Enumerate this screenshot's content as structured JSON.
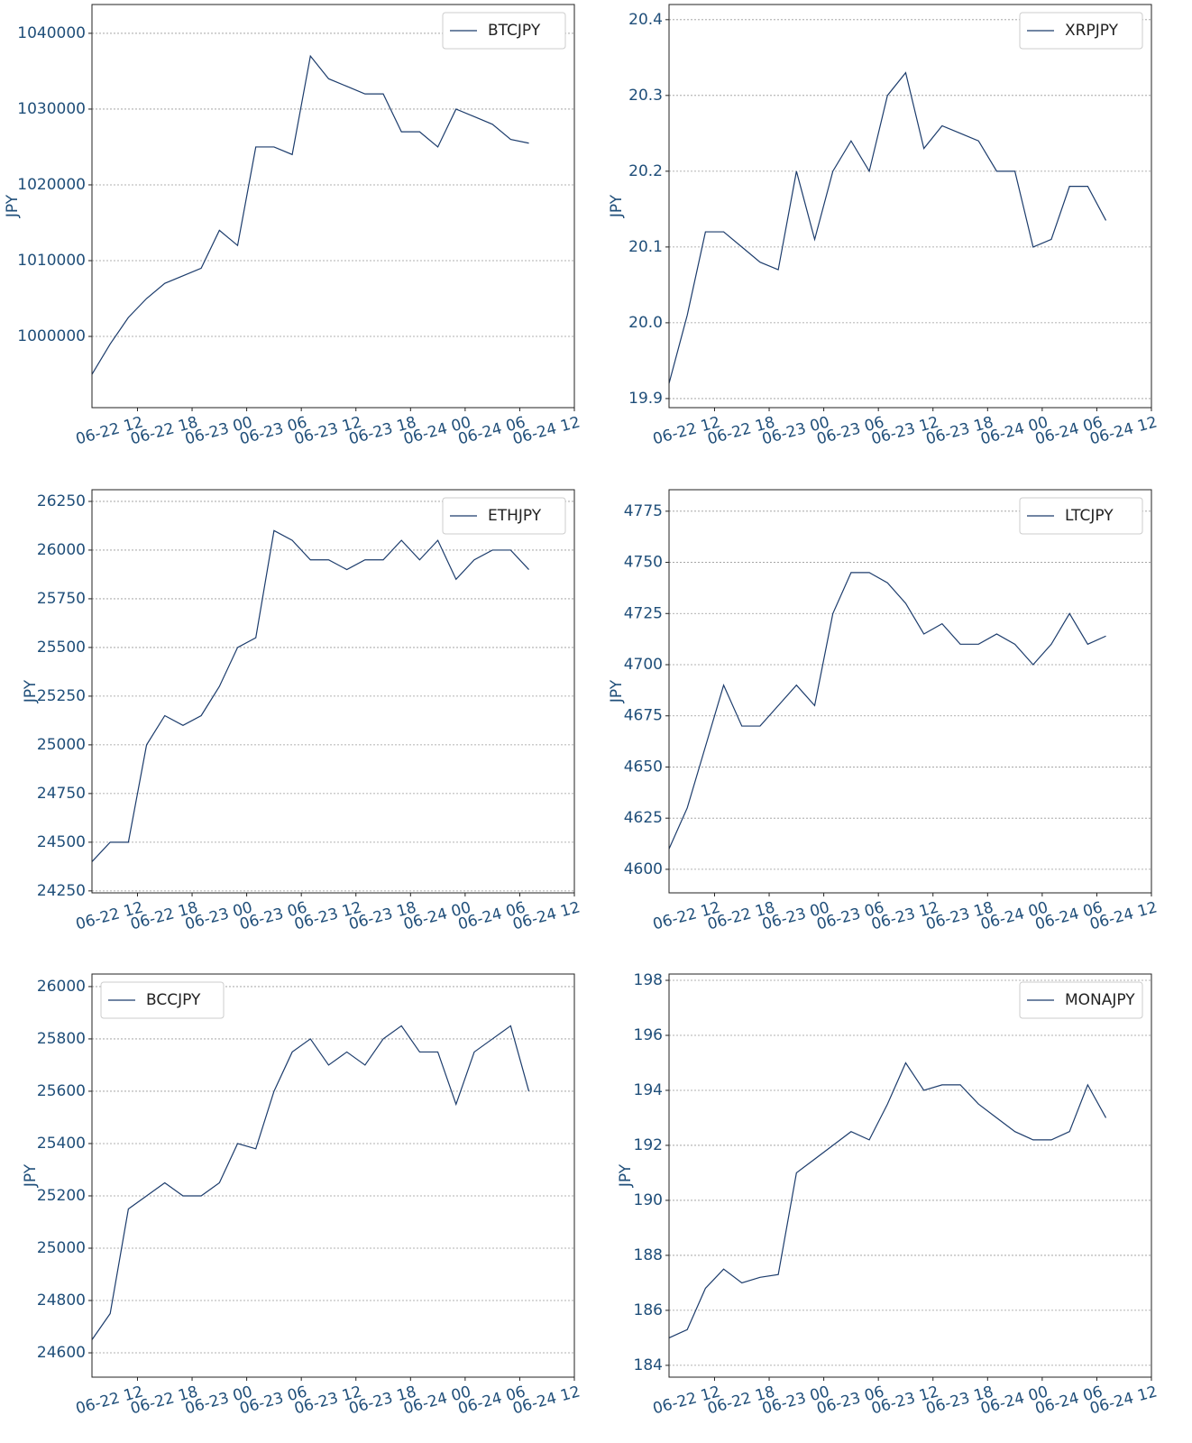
{
  "chart_data": [
    {
      "type": "line",
      "y_label": "JPY",
      "grid": true,
      "legend": "upper right",
      "x": [
        "06-22 07",
        "06-22 09",
        "06-22 11",
        "06-22 13",
        "06-22 15",
        "06-22 17",
        "06-22 19",
        "06-22 21",
        "06-22 23",
        "06-23 01",
        "06-23 03",
        "06-23 05",
        "06-23 07",
        "06-23 09",
        "06-23 11",
        "06-23 13",
        "06-23 15",
        "06-23 17",
        "06-23 19",
        "06-23 21",
        "06-23 23",
        "06-24 01",
        "06-24 03",
        "06-24 05",
        "06-24 07"
      ],
      "xlim": [
        "06-22 07",
        "06-24 12"
      ],
      "xticks": [
        "06-22 12",
        "06-22 18",
        "06-23 00",
        "06-23 06",
        "06-23 12",
        "06-23 18",
        "06-24 00",
        "06-24 06",
        "06-24 12"
      ],
      "ylim": [
        990600,
        1043800
      ],
      "yticks": [
        1000000,
        1010000,
        1020000,
        1030000,
        1040000
      ],
      "series": [
        {
          "name": "BTCJPY",
          "color": "#1c3c6c",
          "values": [
            995000,
            999000,
            1002500,
            1005000,
            1007000,
            1008000,
            1009000,
            1014000,
            1012000,
            1025000,
            1025000,
            1024000,
            1037000,
            1034000,
            1033000,
            1032000,
            1032000,
            1027000,
            1027000,
            1025000,
            1030000,
            1029000,
            1028000,
            1026000,
            1025500
          ]
        }
      ]
    },
    {
      "type": "line",
      "y_label": "JPY",
      "grid": true,
      "legend": "upper right",
      "x": [
        "06-22 07",
        "06-22 09",
        "06-22 11",
        "06-22 13",
        "06-22 15",
        "06-22 17",
        "06-22 19",
        "06-22 21",
        "06-22 23",
        "06-23 01",
        "06-23 03",
        "06-23 05",
        "06-23 07",
        "06-23 09",
        "06-23 11",
        "06-23 13",
        "06-23 15",
        "06-23 17",
        "06-23 19",
        "06-23 21",
        "06-23 23",
        "06-24 01",
        "06-24 03",
        "06-24 05",
        "06-24 07"
      ],
      "xlim": [
        "06-22 07",
        "06-24 12"
      ],
      "xticks": [
        "06-22 12",
        "06-22 18",
        "06-23 00",
        "06-23 06",
        "06-23 12",
        "06-23 18",
        "06-24 00",
        "06-24 06",
        "06-24 12"
      ],
      "ylim": [
        19.888,
        20.42
      ],
      "yticks": [
        19.9,
        {
          "value": 20,
          "label": "20.0"
        },
        20.1,
        20.2,
        20.3,
        20.4
      ],
      "series": [
        {
          "name": "XRPJPY",
          "color": "#1c3c6c",
          "values": [
            19.92,
            20.01,
            20.12,
            20.12,
            20.1,
            20.08,
            20.07,
            20.2,
            20.11,
            20.2,
            20.24,
            20.2,
            20.3,
            20.33,
            20.23,
            20.26,
            20.25,
            20.24,
            20.2,
            20.2,
            20.1,
            20.11,
            20.18,
            20.18,
            20.135
          ]
        }
      ]
    },
    {
      "type": "line",
      "y_label": "JPY",
      "grid": true,
      "legend": "upper right",
      "x": [
        "06-22 07",
        "06-22 09",
        "06-22 11",
        "06-22 13",
        "06-22 15",
        "06-22 17",
        "06-22 19",
        "06-22 21",
        "06-22 23",
        "06-23 01",
        "06-23 03",
        "06-23 05",
        "06-23 07",
        "06-23 09",
        "06-23 11",
        "06-23 13",
        "06-23 15",
        "06-23 17",
        "06-23 19",
        "06-23 21",
        "06-23 23",
        "06-24 01",
        "06-24 03",
        "06-24 05",
        "06-24 07"
      ],
      "xlim": [
        "06-22 07",
        "06-24 12"
      ],
      "xticks": [
        "06-22 12",
        "06-22 18",
        "06-23 00",
        "06-23 06",
        "06-23 12",
        "06-23 18",
        "06-24 00",
        "06-24 06",
        "06-24 12"
      ],
      "ylim": [
        24240,
        26310
      ],
      "yticks": [
        24250,
        24500,
        24750,
        25000,
        25250,
        25500,
        25750,
        26000,
        26250
      ],
      "series": [
        {
          "name": "ETHJPY",
          "color": "#1c3c6c",
          "values": [
            24400,
            24500,
            24500,
            25000,
            25150,
            25100,
            25150,
            25300,
            25500,
            25550,
            26100,
            26050,
            25950,
            25950,
            25900,
            25950,
            25950,
            26050,
            25950,
            26050,
            25850,
            25950,
            26000,
            26000,
            25900
          ]
        }
      ]
    },
    {
      "type": "line",
      "y_label": "JPY",
      "grid": true,
      "legend": "upper right",
      "x": [
        "06-22 07",
        "06-22 09",
        "06-22 11",
        "06-22 13",
        "06-22 15",
        "06-22 17",
        "06-22 19",
        "06-22 21",
        "06-22 23",
        "06-23 01",
        "06-23 03",
        "06-23 05",
        "06-23 07",
        "06-23 09",
        "06-23 11",
        "06-23 13",
        "06-23 15",
        "06-23 17",
        "06-23 19",
        "06-23 21",
        "06-23 23",
        "06-24 01",
        "06-24 03",
        "06-24 05",
        "06-24 07"
      ],
      "xlim": [
        "06-22 07",
        "06-24 12"
      ],
      "xticks": [
        "06-22 12",
        "06-22 18",
        "06-23 00",
        "06-23 06",
        "06-23 12",
        "06-23 18",
        "06-24 00",
        "06-24 06",
        "06-24 12"
      ],
      "ylim": [
        4588.5,
        4785.5
      ],
      "yticks": [
        4600,
        4625,
        4650,
        4675,
        4700,
        4725,
        4750,
        4775
      ],
      "series": [
        {
          "name": "LTCJPY",
          "color": "#1c3c6c",
          "values": [
            4610,
            4630,
            4660,
            4690,
            4670,
            4670,
            4680,
            4690,
            4680,
            4725,
            4745,
            4745,
            4740,
            4730,
            4715,
            4720,
            4710,
            4710,
            4715,
            4710,
            4700,
            4710,
            4725,
            4710,
            4714
          ]
        }
      ]
    },
    {
      "type": "line",
      "y_label": "JPY",
      "grid": true,
      "legend": "upper left",
      "x": [
        "06-22 07",
        "06-22 09",
        "06-22 11",
        "06-22 13",
        "06-22 15",
        "06-22 17",
        "06-22 19",
        "06-22 21",
        "06-22 23",
        "06-23 01",
        "06-23 03",
        "06-23 05",
        "06-23 07",
        "06-23 09",
        "06-23 11",
        "06-23 13",
        "06-23 15",
        "06-23 17",
        "06-23 19",
        "06-23 21",
        "06-23 23",
        "06-24 01",
        "06-24 03",
        "06-24 05",
        "06-24 07"
      ],
      "xlim": [
        "06-22 07",
        "06-24 12"
      ],
      "xticks": [
        "06-22 12",
        "06-22 18",
        "06-23 00",
        "06-23 06",
        "06-23 12",
        "06-23 18",
        "06-24 00",
        "06-24 06",
        "06-24 12"
      ],
      "ylim": [
        24507,
        26048
      ],
      "yticks": [
        24600,
        24800,
        25000,
        25200,
        25400,
        25600,
        25800,
        26000
      ],
      "series": [
        {
          "name": "BCCJPY",
          "color": "#1c3c6c",
          "values": [
            24650,
            24750,
            25150,
            25200,
            25250,
            25200,
            25200,
            25250,
            25400,
            25380,
            25600,
            25750,
            25800,
            25700,
            25750,
            25700,
            25800,
            25850,
            25750,
            25750,
            25550,
            25750,
            25800,
            25850,
            25600
          ]
        }
      ]
    },
    {
      "type": "line",
      "y_label": "JPY",
      "grid": true,
      "legend": "upper right",
      "x": [
        "06-22 07",
        "06-22 09",
        "06-22 11",
        "06-22 13",
        "06-22 15",
        "06-22 17",
        "06-22 19",
        "06-22 21",
        "06-22 23",
        "06-23 01",
        "06-23 03",
        "06-23 05",
        "06-23 07",
        "06-23 09",
        "06-23 11",
        "06-23 13",
        "06-23 15",
        "06-23 17",
        "06-23 19",
        "06-23 21",
        "06-23 23",
        "06-24 01",
        "06-24 03",
        "06-24 05",
        "06-24 07"
      ],
      "xlim": [
        "06-22 07",
        "06-24 12"
      ],
      "xticks": [
        "06-22 12",
        "06-22 18",
        "06-23 00",
        "06-23 06",
        "06-23 12",
        "06-23 18",
        "06-24 00",
        "06-24 06",
        "06-24 12"
      ],
      "ylim": [
        183.57,
        198.23
      ],
      "yticks": [
        184,
        186,
        188,
        190,
        192,
        194,
        196,
        198
      ],
      "series": [
        {
          "name": "MONAJPY",
          "color": "#1c3c6c",
          "values": [
            185,
            185.3,
            186.8,
            187.5,
            187,
            187.2,
            187.3,
            191,
            191.5,
            192,
            192.5,
            192.2,
            193.5,
            195,
            194,
            194.2,
            194.2,
            193.5,
            193,
            192.5,
            192.2,
            192.2,
            192.5,
            194.2,
            193
          ]
        }
      ]
    }
  ]
}
